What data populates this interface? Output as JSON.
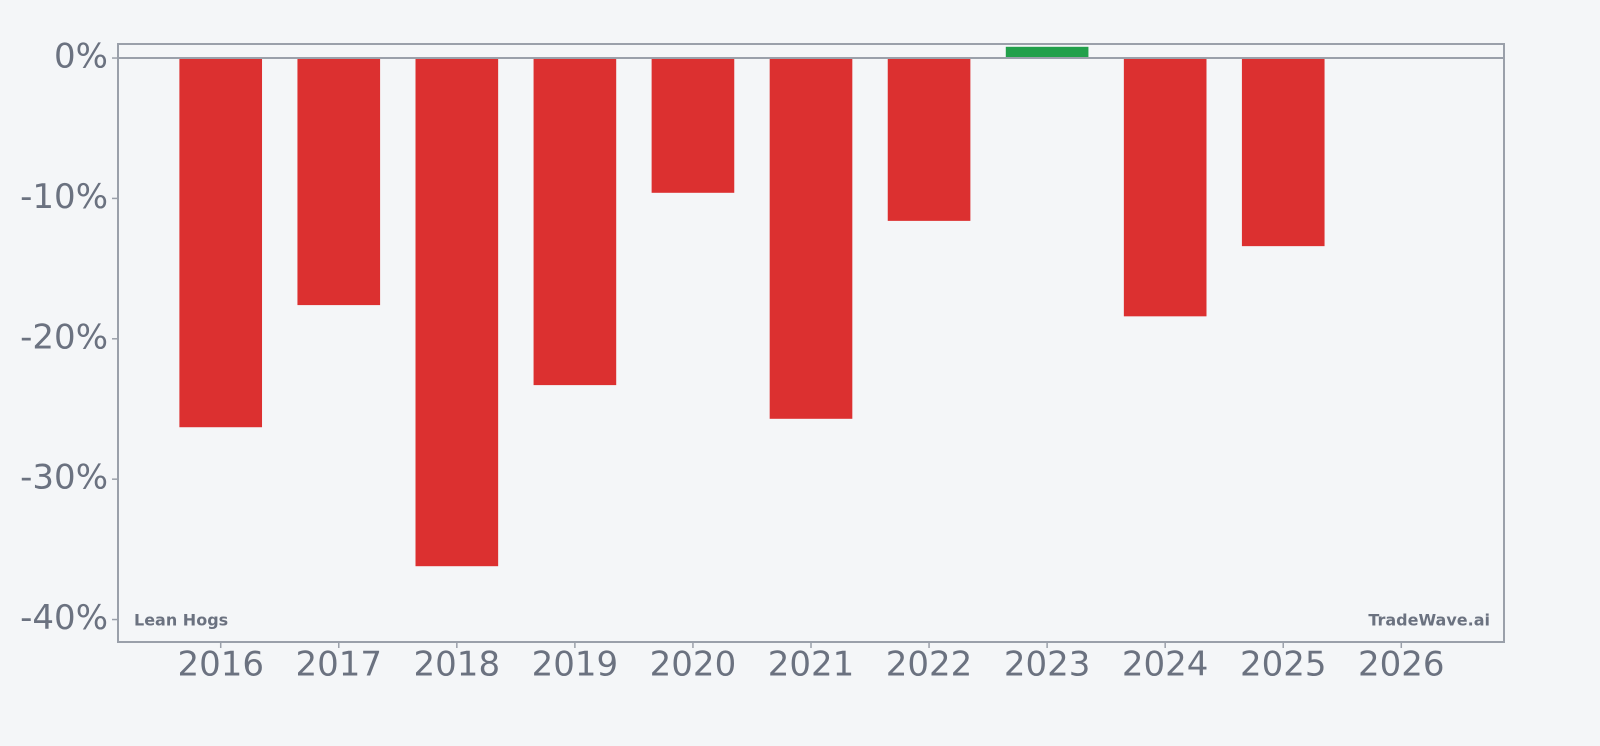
{
  "chart_data": {
    "type": "bar",
    "x": [
      2016,
      2017,
      2018,
      2019,
      2020,
      2021,
      2022,
      2023,
      2024,
      2025,
      2026
    ],
    "values": [
      -26.3,
      -17.6,
      -36.2,
      -23.3,
      -9.6,
      -25.7,
      -11.6,
      0.8,
      -18.4,
      -13.4,
      null
    ],
    "positive_color": "#22a04b",
    "negative_color": "#dc3030",
    "xlim": [
      2015.13,
      2026.87
    ],
    "xticks": [
      2016,
      2017,
      2018,
      2019,
      2020,
      2021,
      2022,
      2023,
      2024,
      2025,
      2026
    ],
    "ylim": [
      -41.6,
      1.0
    ],
    "yticks": [
      {
        "value": 0,
        "label": "0%"
      },
      {
        "value": -10,
        "label": "-10%"
      },
      {
        "value": -20,
        "label": "-20%"
      },
      {
        "value": -30,
        "label": "-30%"
      },
      {
        "value": -40,
        "label": "-40%"
      }
    ],
    "annotations": [
      "Lean Hogs",
      "TradeWave.ai"
    ]
  }
}
